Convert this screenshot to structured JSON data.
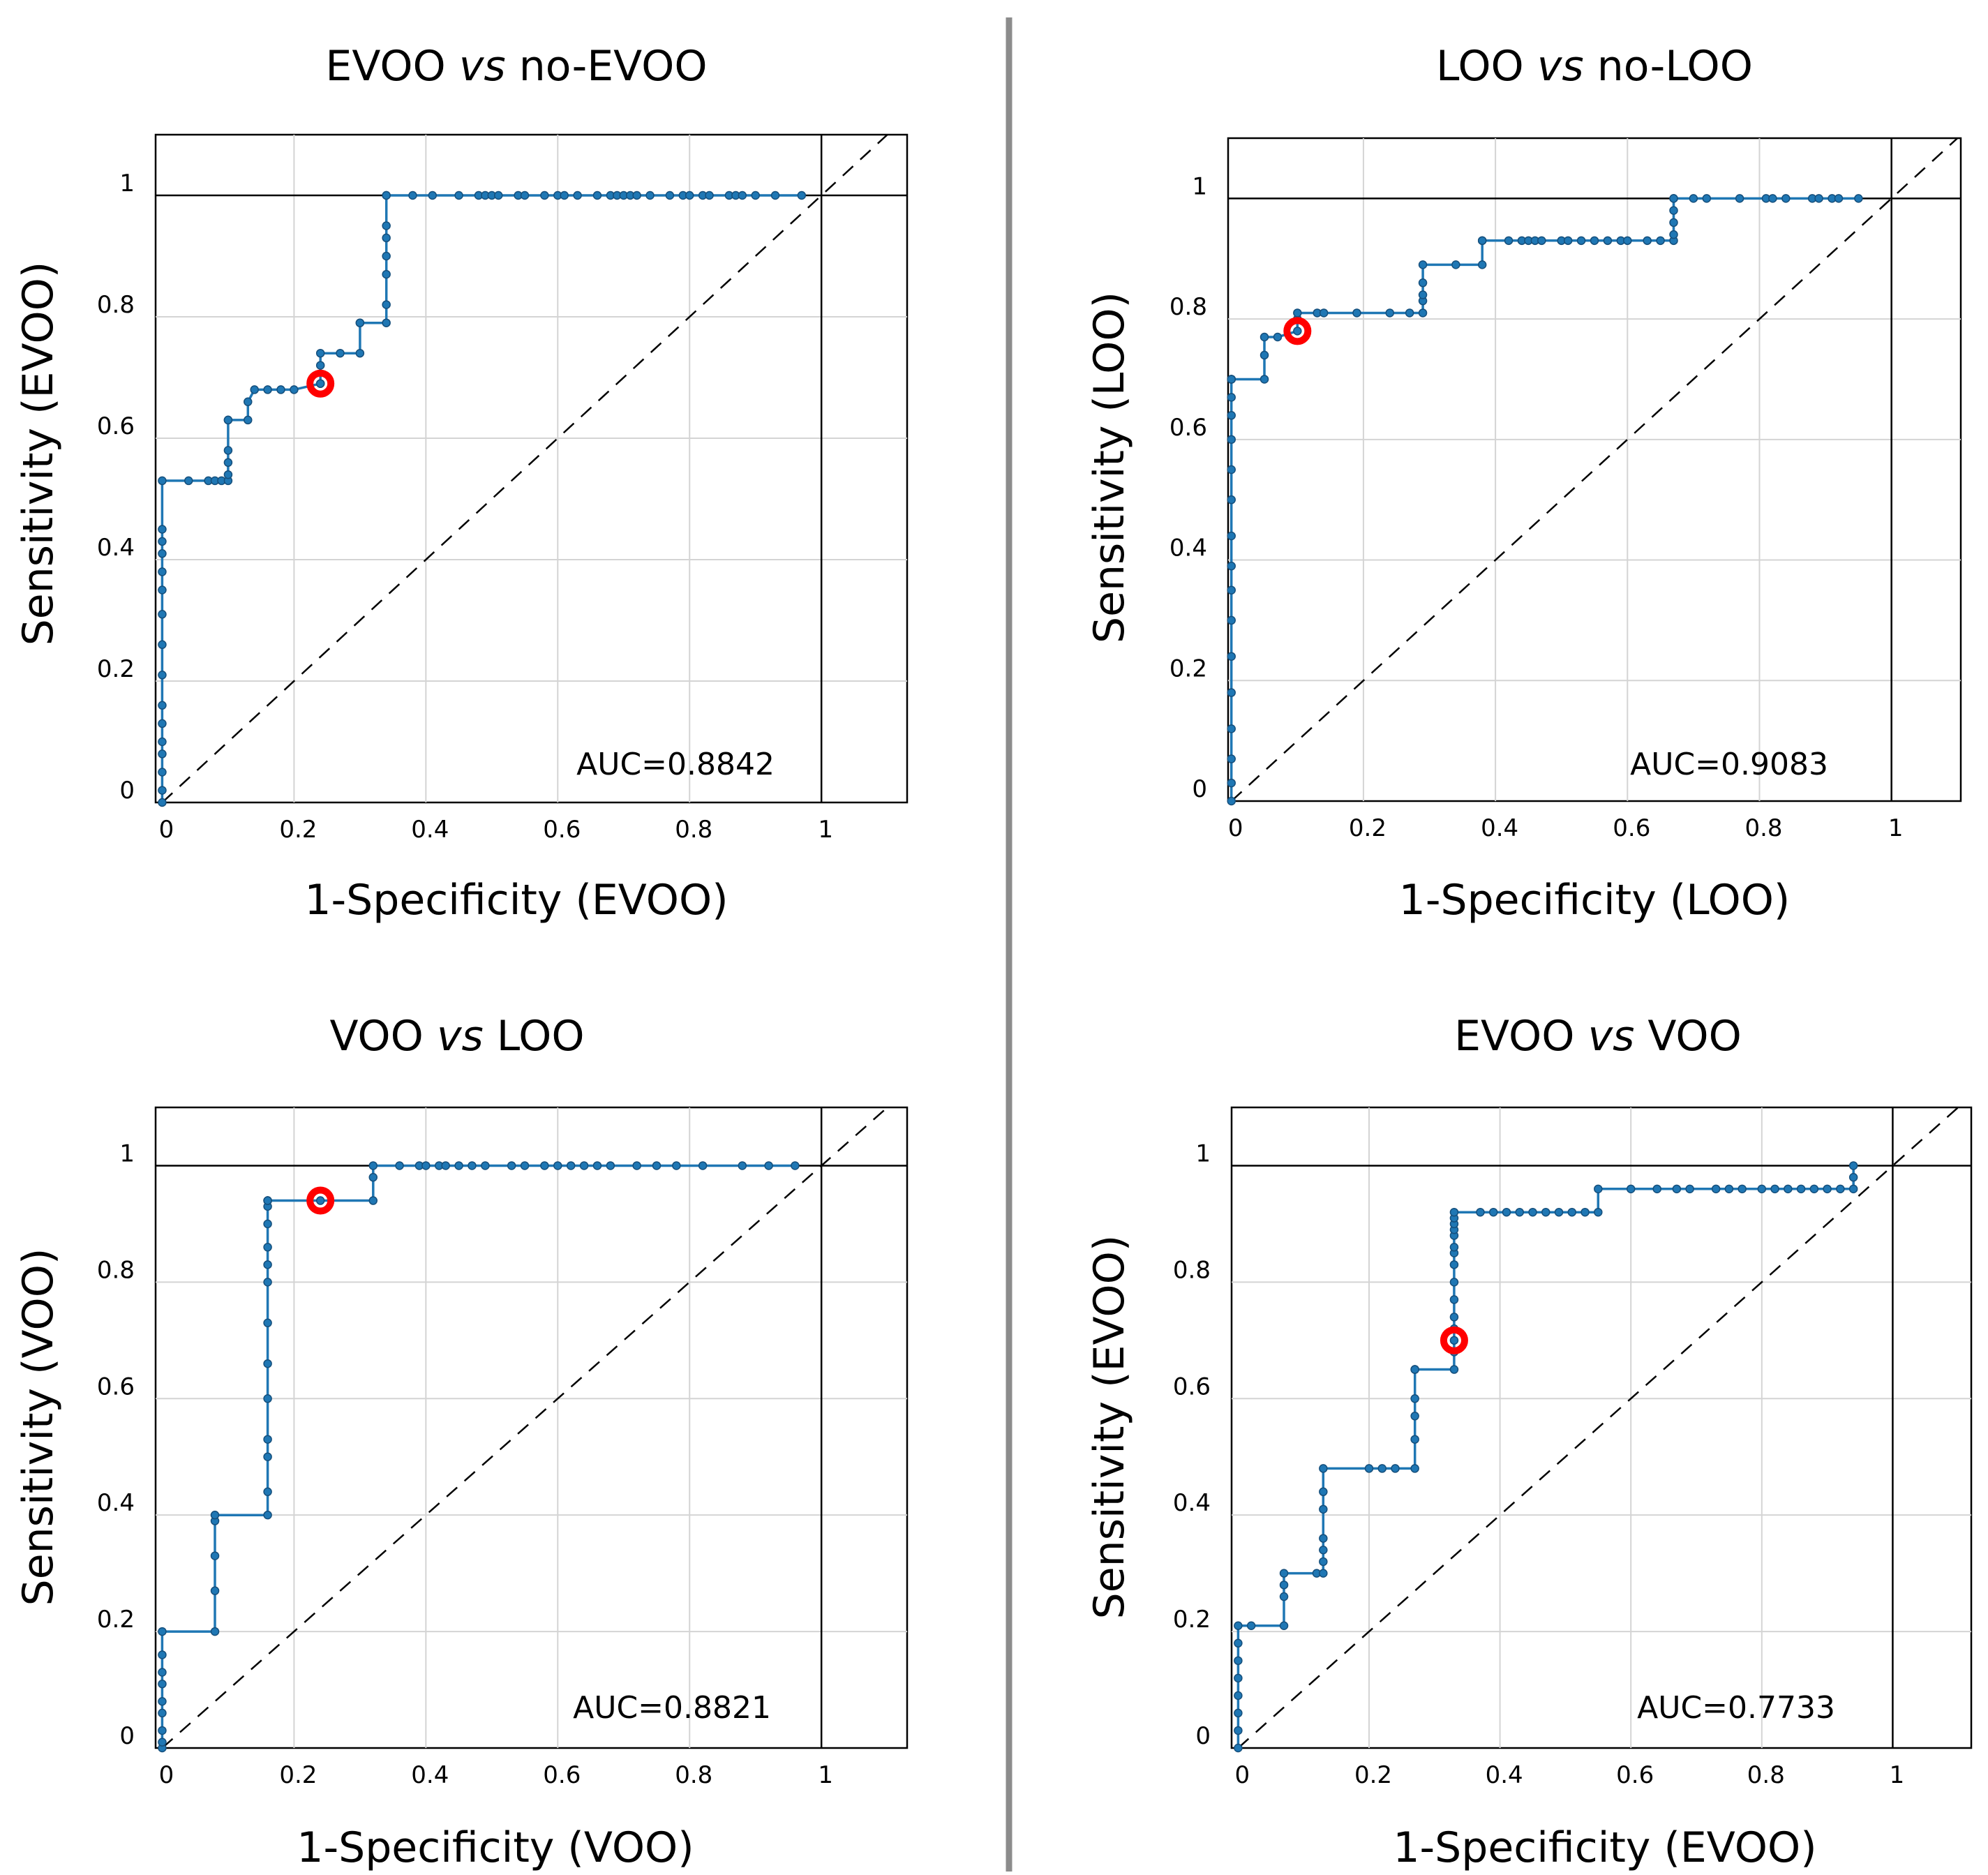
{
  "colors": {
    "curve": "#1f77b4",
    "point": "#1f77b4",
    "optimal_marker": "#ff0000",
    "grid": "#d4d4d4",
    "divider": "#8c8c8c"
  },
  "chart_data": [
    {
      "type": "line",
      "title_parts": [
        "EVOO ",
        "vs",
        " no-EVOO"
      ],
      "title": "EVOO vs no-EVOO",
      "xlabel": "1-Specificity (EVOO)",
      "ylabel": "Sensitivity (EVOO)",
      "auc_label": "AUC=0.8842",
      "xlim": [
        -0.01,
        1.13
      ],
      "ylim": [
        0,
        1.1
      ],
      "xticks": [
        0,
        0.2,
        0.4,
        0.6,
        0.8,
        1
      ],
      "xtick_labels": [
        "0",
        "0.2",
        "0.4",
        "0.6",
        "0.8",
        "1"
      ],
      "yticks": [
        0,
        0.2,
        0.4,
        0.6,
        0.8,
        1
      ],
      "ytick_labels": [
        "0",
        "0.2",
        "0.4",
        "0.6",
        "0.8",
        "1"
      ],
      "optimal_point": [
        0.24,
        0.69
      ],
      "x": [
        0,
        0,
        0,
        0,
        0,
        0,
        0,
        0,
        0,
        0,
        0,
        0,
        0,
        0,
        0,
        0,
        0.04,
        0.07,
        0.08,
        0.09,
        0.1,
        0.1,
        0.1,
        0.1,
        0.1,
        0.1,
        0.13,
        0.13,
        0.14,
        0.16,
        0.18,
        0.2,
        0.24,
        0.24,
        0.24,
        0.24,
        0.27,
        0.3,
        0.3,
        0.3,
        0.34,
        0.34,
        0.34,
        0.34,
        0.34,
        0.34,
        0.34,
        0.34,
        0.38,
        0.41,
        0.45,
        0.48,
        0.49,
        0.5,
        0.51,
        0.54,
        0.55,
        0.58,
        0.6,
        0.61,
        0.63,
        0.66,
        0.68,
        0.69,
        0.7,
        0.71,
        0.72,
        0.74,
        0.77,
        0.79,
        0.8,
        0.82,
        0.83,
        0.86,
        0.87,
        0.88,
        0.9,
        0.93,
        0.97
      ],
      "y": [
        0,
        0.02,
        0.05,
        0.08,
        0.1,
        0.13,
        0.16,
        0.21,
        0.26,
        0.31,
        0.35,
        0.38,
        0.41,
        0.43,
        0.45,
        0.53,
        0.53,
        0.53,
        0.53,
        0.53,
        0.53,
        0.54,
        0.56,
        0.58,
        0.63,
        0.63,
        0.63,
        0.66,
        0.68,
        0.68,
        0.68,
        0.68,
        0.69,
        0.69,
        0.72,
        0.74,
        0.74,
        0.74,
        0.79,
        0.79,
        0.79,
        0.82,
        0.87,
        0.9,
        0.93,
        0.95,
        1,
        1,
        1,
        1,
        1,
        1,
        1,
        1,
        1,
        1,
        1,
        1,
        1,
        1,
        1,
        1,
        1,
        1,
        1,
        1,
        1,
        1,
        1,
        1,
        1,
        1,
        1,
        1,
        1,
        1,
        1,
        1,
        1
      ]
    },
    {
      "type": "line",
      "title_parts": [
        "LOO ",
        "vs",
        " no-LOO"
      ],
      "title": "LOO vs no-LOO",
      "xlabel": "1-Specificity (LOO)",
      "ylabel": "Sensitivity (LOO)",
      "auc_label": "AUC=0.9083",
      "xlim": [
        -0.005,
        1.105
      ],
      "ylim": [
        0,
        1.1
      ],
      "xticks": [
        0,
        0.2,
        0.4,
        0.6,
        0.8,
        1
      ],
      "xtick_labels": [
        "0",
        "0.2",
        "0.4",
        "0.6",
        "0.8",
        "1"
      ],
      "yticks": [
        0,
        0.2,
        0.4,
        0.6,
        0.8,
        1
      ],
      "ytick_labels": [
        "0",
        "0.2",
        "0.4",
        "0.6",
        "0.8",
        "1"
      ],
      "optimal_point": [
        0.1,
        0.78
      ],
      "x": [
        0,
        0,
        0,
        0,
        0,
        0,
        0,
        0,
        0,
        0,
        0,
        0,
        0,
        0,
        0,
        0,
        0,
        0,
        0,
        0.05,
        0.05,
        0.05,
        0.07,
        0.1,
        0.1,
        0.1,
        0.13,
        0.14,
        0.19,
        0.24,
        0.27,
        0.29,
        0.29,
        0.29,
        0.29,
        0.29,
        0.34,
        0.38,
        0.38,
        0.38,
        0.42,
        0.44,
        0.45,
        0.46,
        0.47,
        0.5,
        0.51,
        0.53,
        0.55,
        0.57,
        0.59,
        0.6,
        0.63,
        0.65,
        0.67,
        0.67,
        0.67,
        0.67,
        0.67,
        0.67,
        0.7,
        0.72,
        0.77,
        0.81,
        0.82,
        0.84,
        0.88,
        0.89,
        0.91,
        0.92,
        0.95
      ],
      "y": [
        0,
        0.03,
        0.07,
        0.12,
        0.18,
        0.24,
        0.3,
        0.35,
        0.39,
        0.44,
        0.5,
        0.55,
        0.6,
        0.64,
        0.67,
        0.7,
        0.7,
        0.7,
        0.7,
        0.7,
        0.74,
        0.77,
        0.77,
        0.78,
        0.8,
        0.81,
        0.81,
        0.81,
        0.81,
        0.81,
        0.81,
        0.81,
        0.83,
        0.84,
        0.86,
        0.89,
        0.89,
        0.89,
        0.93,
        0.93,
        0.93,
        0.93,
        0.93,
        0.93,
        0.93,
        0.93,
        0.93,
        0.93,
        0.93,
        0.93,
        0.93,
        0.93,
        0.93,
        0.93,
        0.93,
        0.94,
        0.96,
        0.98,
        1,
        1,
        1,
        1,
        1,
        1,
        1,
        1,
        1,
        1,
        1,
        1,
        1
      ]
    },
    {
      "type": "line",
      "title_parts": [
        "VOO ",
        "vs",
        " LOO"
      ],
      "title": "VOO vs LOO",
      "xlabel": "1-Specificity (VOO)",
      "ylabel": "Sensitivity (VOO)",
      "auc_label": "AUC=0.8821",
      "xlim": [
        -0.01,
        1.13
      ],
      "ylim": [
        0,
        1.1
      ],
      "xticks": [
        0,
        0.2,
        0.4,
        0.6,
        0.8,
        1
      ],
      "xtick_labels": [
        "0",
        "0.2",
        "0.4",
        "0.6",
        "0.8",
        "1"
      ],
      "yticks": [
        0,
        0.2,
        0.4,
        0.6,
        0.8,
        1
      ],
      "ytick_labels": [
        "0",
        "0.2",
        "0.4",
        "0.6",
        "0.8",
        "1"
      ],
      "optimal_point": [
        0.24,
        0.94
      ],
      "x": [
        0,
        0,
        0,
        0,
        0,
        0,
        0,
        0,
        0,
        0.08,
        0.08,
        0.08,
        0.08,
        0.08,
        0.16,
        0.16,
        0.16,
        0.16,
        0.16,
        0.16,
        0.16,
        0.16,
        0.16,
        0.16,
        0.16,
        0.16,
        0.16,
        0.16,
        0.16,
        0.24,
        0.32,
        0.32,
        0.32,
        0.36,
        0.39,
        0.4,
        0.42,
        0.43,
        0.45,
        0.47,
        0.49,
        0.53,
        0.55,
        0.58,
        0.6,
        0.62,
        0.64,
        0.66,
        0.68,
        0.72,
        0.75,
        0.78,
        0.82,
        0.88,
        0.92,
        0.96
      ],
      "y": [
        0,
        0.01,
        0.03,
        0.06,
        0.08,
        0.11,
        0.13,
        0.16,
        0.2,
        0.2,
        0.27,
        0.33,
        0.39,
        0.4,
        0.4,
        0.44,
        0.5,
        0.53,
        0.6,
        0.66,
        0.73,
        0.8,
        0.83,
        0.86,
        0.9,
        0.93,
        0.94,
        0.94,
        0.94,
        0.94,
        0.94,
        0.98,
        1,
        1,
        1,
        1,
        1,
        1,
        1,
        1,
        1,
        1,
        1,
        1,
        1,
        1,
        1,
        1,
        1,
        1,
        1,
        1,
        1,
        1,
        1,
        1
      ]
    },
    {
      "type": "line",
      "title_parts": [
        "EVOO ",
        "vs",
        " VOO"
      ],
      "title": "EVOO vs VOO",
      "xlabel": "1-Specificity (EVOO)",
      "ylabel": "Sensitivity (EVOO)",
      "auc_label": "AUC=0.7733",
      "xlim": [
        -0.01,
        1.12
      ],
      "ylim": [
        0,
        1.1
      ],
      "xticks": [
        0,
        0.2,
        0.4,
        0.6,
        0.8,
        1
      ],
      "xtick_labels": [
        "0",
        "0.2",
        "0.4",
        "0.6",
        "0.8",
        "1"
      ],
      "yticks": [
        0,
        0.2,
        0.4,
        0.6,
        0.8,
        1
      ],
      "ytick_labels": [
        "0",
        "0.2",
        "0.4",
        "0.6",
        "0.8",
        "1"
      ],
      "optimal_point": [
        0.33,
        0.7
      ],
      "x": [
        0,
        0,
        0,
        0,
        0,
        0,
        0,
        0,
        0.02,
        0.07,
        0.07,
        0.07,
        0.07,
        0.12,
        0.13,
        0.13,
        0.13,
        0.13,
        0.13,
        0.13,
        0.13,
        0.2,
        0.22,
        0.24,
        0.27,
        0.27,
        0.27,
        0.27,
        0.27,
        0.27,
        0.27,
        0.33,
        0.33,
        0.33,
        0.33,
        0.33,
        0.33,
        0.33,
        0.33,
        0.33,
        0.33,
        0.33,
        0.33,
        0.33,
        0.33,
        0.33,
        0.37,
        0.39,
        0.41,
        0.43,
        0.45,
        0.47,
        0.49,
        0.51,
        0.53,
        0.55,
        0.55,
        0.6,
        0.64,
        0.67,
        0.69,
        0.73,
        0.75,
        0.77,
        0.8,
        0.82,
        0.84,
        0.86,
        0.88,
        0.9,
        0.92,
        0.94,
        0.94,
        0.94
      ],
      "y": [
        0,
        0.03,
        0.06,
        0.09,
        0.12,
        0.15,
        0.18,
        0.21,
        0.21,
        0.21,
        0.26,
        0.28,
        0.3,
        0.3,
        0.3,
        0.32,
        0.34,
        0.36,
        0.41,
        0.44,
        0.48,
        0.48,
        0.48,
        0.48,
        0.48,
        0.53,
        0.57,
        0.6,
        0.65,
        0.65,
        0.65,
        0.65,
        0.68,
        0.7,
        0.72,
        0.74,
        0.77,
        0.8,
        0.83,
        0.85,
        0.86,
        0.88,
        0.89,
        0.9,
        0.91,
        0.92,
        0.92,
        0.92,
        0.92,
        0.92,
        0.92,
        0.92,
        0.92,
        0.92,
        0.92,
        0.92,
        0.96,
        0.96,
        0.96,
        0.96,
        0.96,
        0.96,
        0.96,
        0.96,
        0.96,
        0.96,
        0.96,
        0.96,
        0.96,
        0.96,
        0.96,
        0.96,
        0.98,
        1
      ]
    }
  ]
}
